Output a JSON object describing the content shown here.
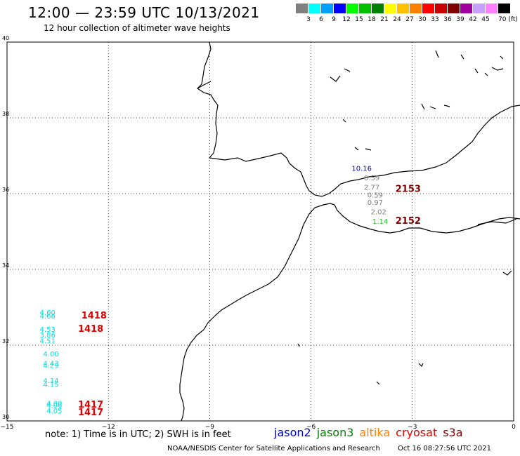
{
  "header": {
    "title": "12:00 — 23:59 UTC 10/13/2021",
    "subtitle": "12 hour collection of altimeter wave heights"
  },
  "scale": {
    "colors": [
      "#808080",
      "#00ffff",
      "#00a0ff",
      "#0000ff",
      "#00ff00",
      "#00c000",
      "#008000",
      "#ffff00",
      "#ffc000",
      "#ff8000",
      "#ff0000",
      "#c80000",
      "#800000",
      "#a000a0",
      "#c8a0ff",
      "#ff80ff",
      "#000000"
    ],
    "labels": [
      "3",
      "6",
      "9",
      "12",
      "15",
      "18",
      "21",
      "24",
      "27",
      "30",
      "33",
      "36",
      "39",
      "42",
      "45",
      "70 (ft)"
    ]
  },
  "axes": {
    "x_ticks": [
      "−15",
      "−12",
      "−9",
      "−6",
      "−3",
      "0"
    ],
    "y_ticks": [
      "40",
      "38",
      "36",
      "34",
      "32",
      "30"
    ]
  },
  "observations": [
    {
      "lon": -13.8,
      "lat": 32.8,
      "swh": "4.60",
      "color": "#00e0e0"
    },
    {
      "lon": -13.8,
      "lat": 32.7,
      "swh": "4.66",
      "color": "#00e0e0"
    },
    {
      "lon": -13.8,
      "lat": 32.35,
      "swh": "4.53",
      "color": "#00e0e0"
    },
    {
      "lon": -13.8,
      "lat": 32.2,
      "swh": "3.86",
      "color": "#00e0e0"
    },
    {
      "lon": -13.8,
      "lat": 32.05,
      "swh": "4.51",
      "color": "#00e0e0"
    },
    {
      "lon": -13.7,
      "lat": 31.7,
      "swh": "4.00",
      "color": "#00e0e0"
    },
    {
      "lon": -13.7,
      "lat": 31.45,
      "swh": "4.43",
      "color": "#00e0e0"
    },
    {
      "lon": -13.7,
      "lat": 31.4,
      "swh": "4.29",
      "color": "#00e0e0"
    },
    {
      "lon": -13.7,
      "lat": 31.0,
      "swh": "4.14",
      "color": "#00e0e0"
    },
    {
      "lon": -13.7,
      "lat": 30.9,
      "swh": "4.15",
      "color": "#00e0e0"
    },
    {
      "lon": -13.6,
      "lat": 30.4,
      "swh": "4.00",
      "color": "#00e0e0"
    },
    {
      "lon": -13.6,
      "lat": 30.35,
      "swh": "4.06",
      "color": "#00e0e0"
    },
    {
      "lon": -13.6,
      "lat": 30.2,
      "swh": "4.05",
      "color": "#00e0e0"
    },
    {
      "lon": -4.5,
      "lat": 36.6,
      "swh": "10.16",
      "color": "#0000c0"
    },
    {
      "lon": -4.2,
      "lat": 36.35,
      "swh": "0.59",
      "color": "#808080"
    },
    {
      "lon": -4.2,
      "lat": 36.1,
      "swh": "2.77",
      "color": "#808080"
    },
    {
      "lon": -4.1,
      "lat": 35.9,
      "swh": "0.59",
      "color": "#808080"
    },
    {
      "lon": -4.1,
      "lat": 35.7,
      "swh": "0.97",
      "color": "#808080"
    },
    {
      "lon": -4.0,
      "lat": 35.45,
      "swh": "2.02",
      "color": "#808080"
    },
    {
      "lon": -3.95,
      "lat": 35.2,
      "swh": "1.14",
      "color": "#20c020"
    }
  ],
  "time_labels": [
    {
      "lon": -12.8,
      "lat": 32.7,
      "text": "1418",
      "color": "#e00000"
    },
    {
      "lon": -12.9,
      "lat": 32.35,
      "text": "1418",
      "color": "#e00000"
    },
    {
      "lon": -12.9,
      "lat": 30.35,
      "text": "1417",
      "color": "#e00000"
    },
    {
      "lon": -12.9,
      "lat": 30.15,
      "text": "1417",
      "color": "#e00000"
    },
    {
      "lon": -3.5,
      "lat": 36.05,
      "text": "2153",
      "color": "#800000"
    },
    {
      "lon": -3.5,
      "lat": 35.2,
      "text": "2152",
      "color": "#800000"
    }
  ],
  "footer": {
    "note": "note:  1) Time is in UTC;  2) SWH is in feet",
    "legend": [
      {
        "label": "jason2",
        "color": "#0000c0"
      },
      {
        "label": "jason3",
        "color": "#008000"
      },
      {
        "label": "altika",
        "color": "#ff8000"
      },
      {
        "label": "cryosat",
        "color": "#e00000"
      },
      {
        "label": "s3a",
        "color": "#800000"
      }
    ],
    "credit_left": "NOAA/NESDIS Center for Satellite Applications and Research",
    "credit_right": "Oct 16 08:27:56 UTC 2021"
  }
}
